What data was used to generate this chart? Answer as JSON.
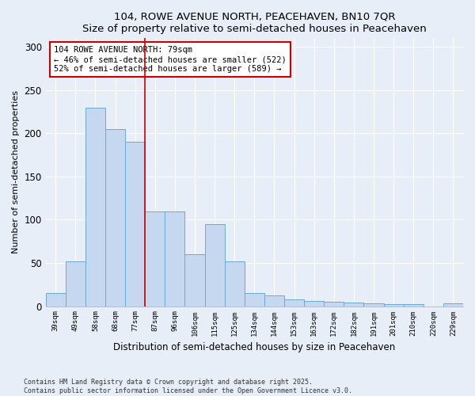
{
  "title1": "104, ROWE AVENUE NORTH, PEACEHAVEN, BN10 7QR",
  "title2": "Size of property relative to semi-detached houses in Peacehaven",
  "xlabel": "Distribution of semi-detached houses by size in Peacehaven",
  "ylabel": "Number of semi-detached properties",
  "categories": [
    "39sqm",
    "49sqm",
    "58sqm",
    "68sqm",
    "77sqm",
    "87sqm",
    "96sqm",
    "106sqm",
    "115sqm",
    "125sqm",
    "134sqm",
    "144sqm",
    "153sqm",
    "163sqm",
    "172sqm",
    "182sqm",
    "191sqm",
    "201sqm",
    "210sqm",
    "220sqm",
    "229sqm"
  ],
  "values": [
    15,
    52,
    230,
    205,
    190,
    110,
    110,
    60,
    95,
    52,
    15,
    12,
    8,
    6,
    5,
    4,
    3,
    2,
    2,
    0,
    3
  ],
  "bar_color": "#c5d8ef",
  "bar_edge_color": "#6aaad4",
  "red_line_x": 4.5,
  "annotation_text": "104 ROWE AVENUE NORTH: 79sqm\n← 46% of semi-detached houses are smaller (522)\n52% of semi-detached houses are larger (589) →",
  "annotation_box_color": "#ffffff",
  "annotation_edge_color": "#cc0000",
  "red_line_color": "#cc0000",
  "ylim": [
    0,
    310
  ],
  "yticks": [
    0,
    50,
    100,
    150,
    200,
    250,
    300
  ],
  "footnote": "Contains HM Land Registry data © Crown copyright and database right 2025.\nContains public sector information licensed under the Open Government Licence v3.0.",
  "background_color": "#e8eef7",
  "plot_background": "#e8eef7",
  "grid_color": "#ffffff"
}
